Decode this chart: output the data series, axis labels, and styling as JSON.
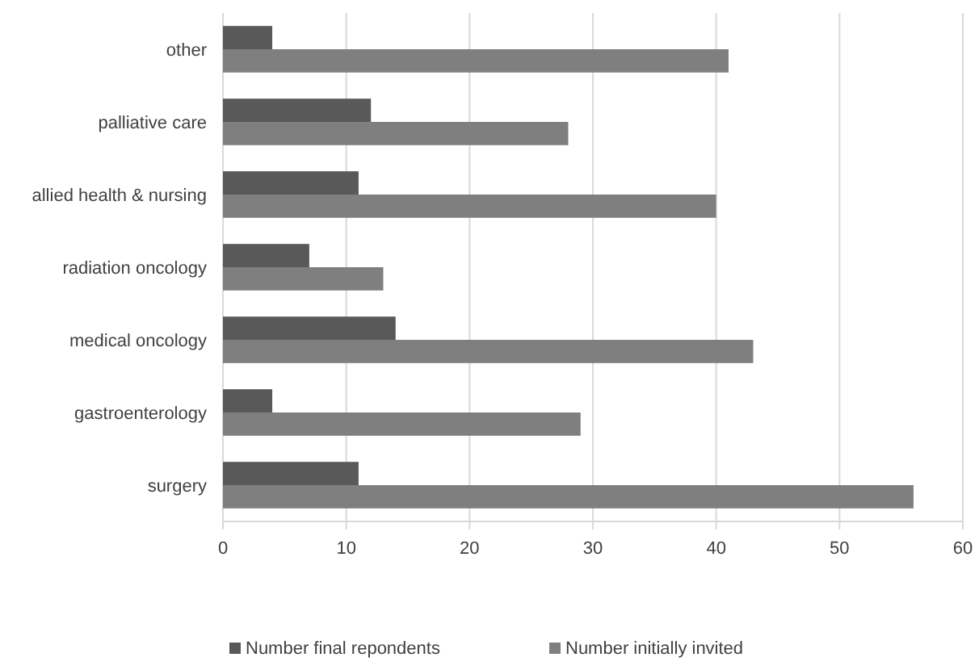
{
  "chart_data": {
    "type": "bar",
    "orientation": "horizontal",
    "categories": [
      "other",
      "palliative care",
      "allied health & nursing",
      "radiation oncology",
      "medical oncology",
      "gastroenterology",
      "surgery"
    ],
    "series": [
      {
        "name": "Number final repondents",
        "color": "#595959",
        "values": [
          4,
          12,
          11,
          7,
          14,
          4,
          11
        ]
      },
      {
        "name": "Number initially invited",
        "color": "#7f7f7f",
        "values": [
          41,
          28,
          40,
          13,
          43,
          29,
          56
        ]
      }
    ],
    "xlim": [
      0,
      60
    ],
    "xticks": [
      0,
      10,
      20,
      30,
      40,
      50,
      60
    ],
    "grid": "x",
    "legend": "bottom"
  }
}
